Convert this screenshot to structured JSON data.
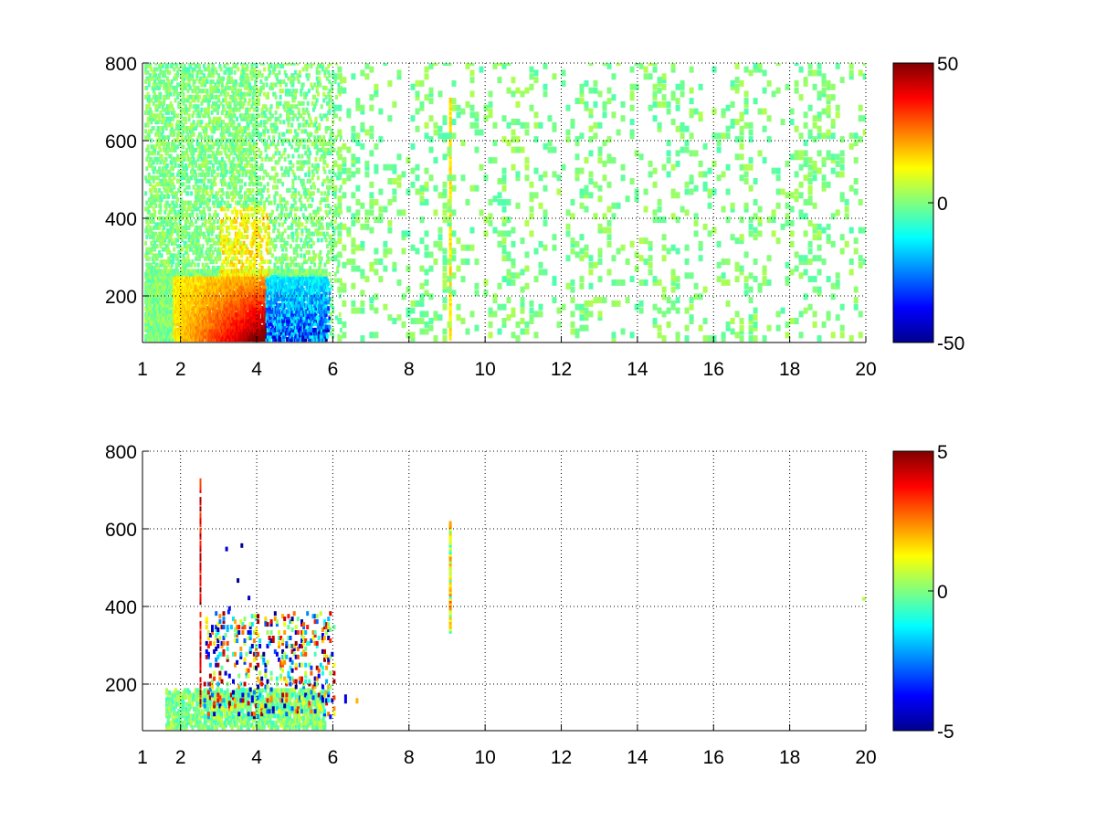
{
  "chart_data": [
    {
      "type": "heatmap",
      "title": "",
      "xlabel": "",
      "ylabel": "",
      "xlim": [
        1,
        20
      ],
      "ylim": [
        80,
        800
      ],
      "x_ticks": [
        1,
        2,
        4,
        6,
        8,
        10,
        12,
        14,
        16,
        18,
        20
      ],
      "y_ticks": [
        200,
        400,
        600,
        800
      ],
      "grid": true,
      "colormap": "jet",
      "colorbar": {
        "range": [
          -50,
          50
        ],
        "ticks": [
          50,
          0,
          -50
        ]
      },
      "features": [
        {
          "description": "dense field of mostly near-zero values with hot region",
          "x_range": [
            1,
            6
          ],
          "y_range": [
            80,
            800
          ],
          "value_range": [
            -50,
            50
          ]
        },
        {
          "description": "strong positive ridge (red/orange) peaking near x=3.8",
          "x_range": [
            1.5,
            4.2
          ],
          "y_range": [
            80,
            250
          ],
          "peak_value": 50
        },
        {
          "description": "negative region (blue)",
          "x_range": [
            3.8,
            5.8
          ],
          "y_range": [
            80,
            250
          ],
          "min_value": -50
        },
        {
          "description": "thin positive vertical stripe",
          "x": 9.1,
          "y_range": [
            80,
            700
          ],
          "value": 10
        },
        {
          "description": "sparse near-zero columns",
          "x_range": [
            6,
            20
          ],
          "y_range": [
            80,
            800
          ],
          "value_range": [
            -5,
            5
          ]
        }
      ]
    },
    {
      "type": "heatmap",
      "title": "",
      "xlabel": "",
      "ylabel": "",
      "xlim": [
        1,
        20
      ],
      "ylim": [
        80,
        800
      ],
      "x_ticks": [
        1,
        2,
        4,
        6,
        8,
        10,
        12,
        14,
        16,
        18,
        20
      ],
      "y_ticks": [
        200,
        400,
        600,
        800
      ],
      "grid": true,
      "colormap": "jet",
      "colorbar": {
        "range": [
          -5,
          5
        ],
        "ticks": [
          5,
          0,
          -5
        ]
      },
      "features": [
        {
          "description": "low-value patch near bottom",
          "x_range": [
            1.5,
            5.8
          ],
          "y_range": [
            80,
            180
          ],
          "value_range": [
            -1,
            1
          ]
        },
        {
          "description": "mixed blue/red speckles",
          "x_range": [
            2.5,
            5.9
          ],
          "y_range": [
            120,
            560
          ],
          "value_range": [
            -5,
            5
          ]
        },
        {
          "description": "vertical stripe with mixed values",
          "x": 9.1,
          "y_range": [
            330,
            610
          ],
          "value_range": [
            -1,
            3
          ]
        },
        {
          "description": "thin red column",
          "x": 2.5,
          "y_range": [
            140,
            720
          ],
          "value": 4
        }
      ]
    }
  ]
}
